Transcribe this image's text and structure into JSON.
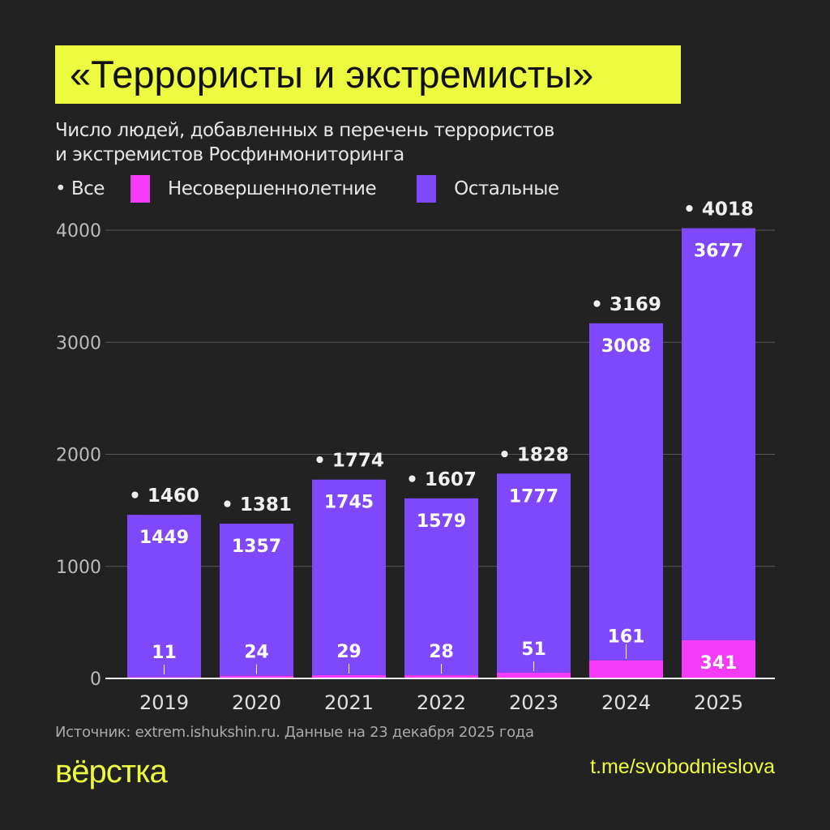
{
  "header": {
    "title": "«Террористы и экстремисты»",
    "subtitle_line1": "Число людей, добавленных в перечень террористов",
    "subtitle_line2": "и экстремистов Росфинмониторинга"
  },
  "legend": {
    "all": "• Все",
    "minors": "Несовершеннолетние",
    "others": "Остальные"
  },
  "colors": {
    "background": "#222222",
    "accent": "#ecfb3f",
    "minors": "#f43cf8",
    "others": "#7f48fb"
  },
  "chart_data": {
    "type": "bar",
    "stacked": true,
    "categories": [
      "2019",
      "2020",
      "2021",
      "2022",
      "2023",
      "2024",
      "2025"
    ],
    "series": [
      {
        "name": "Несовершеннолетние",
        "values": [
          11,
          24,
          29,
          28,
          51,
          161,
          341
        ]
      },
      {
        "name": "Остальные",
        "values": [
          1449,
          1357,
          1745,
          1579,
          1777,
          3008,
          3677
        ]
      }
    ],
    "totals_label": "Все",
    "totals": [
      1460,
      1381,
      1774,
      1607,
      1828,
      3169,
      4018
    ],
    "yticks": [
      "0",
      "1000",
      "2000",
      "3000",
      "4000"
    ],
    "ylim": [
      0,
      4000
    ],
    "grid": true
  },
  "footer": {
    "source": "Источник: extrem.ishukshin.ru. Данные на 23 декабря 2025 года",
    "logo": "вёрстка",
    "link": "t.me/svobodnieslova"
  }
}
